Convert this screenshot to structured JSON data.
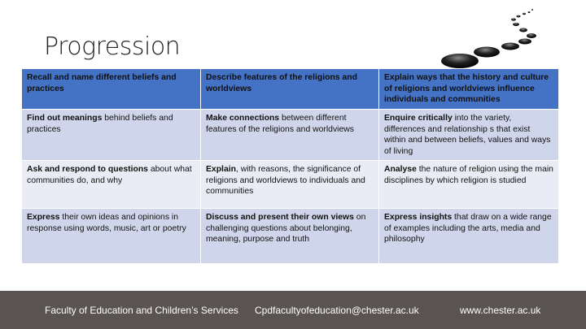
{
  "slide": {
    "title": "Progression"
  },
  "table": {
    "headers": [
      "Recall and name different beliefs and practices",
      "Describe features of the religions and worldviews",
      "Explain ways that the history and culture of religions and worldviews influence individuals and communities"
    ],
    "rows": [
      [
        {
          "bold": "Find out meanings",
          "text": " behind beliefs and practices"
        },
        {
          "bold": "Make connections",
          "text": " between different features of the religions and worldviews"
        },
        {
          "bold": "Enquire critically",
          "text": " into the variety, differences and relationship s that exist within and between beliefs, values and ways of living"
        }
      ],
      [
        {
          "bold": "Ask and respond to questions",
          "text": " about what communities do, and why"
        },
        {
          "bold": "Explain",
          "text": ", with reasons, the significance of religions and worldviews  to individuals and communities"
        },
        {
          "bold": "Analyse",
          "text": " the nature of religion using the main disciplines by which religion is studied"
        }
      ],
      [
        {
          "bold": "Express",
          "text": " their own ideas and opinions in response using words, music, art or poetry"
        },
        {
          "bold": "Discuss and present their own views",
          "text": " on challenging questions about belonging, meaning, purpose and truth"
        },
        {
          "bold": "Express insights",
          "text": " that draw on a wide range of examples including the arts, media and philosophy"
        }
      ]
    ]
  },
  "footer": {
    "faculty": "Faculty of Education and Children’s Services",
    "email": "Cpdfacultyofeducation@chester.ac.uk",
    "website": "www.chester.ac.uk"
  },
  "colors": {
    "header": "#4472c4",
    "row_dark": "#cfd5ea",
    "row_light": "#e9ebf5",
    "footer": "#595452"
  }
}
